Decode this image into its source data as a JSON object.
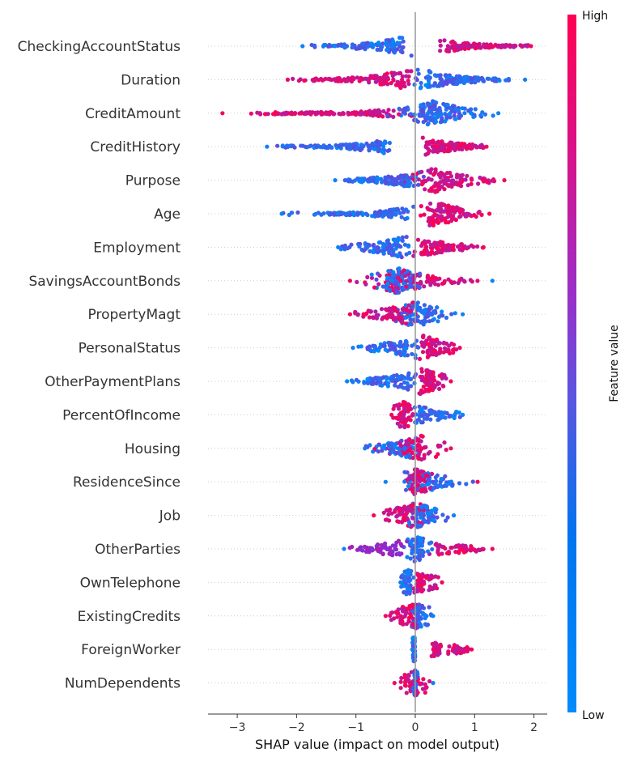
{
  "chart_data": {
    "type": "scatter",
    "subtype": "shap-beeswarm",
    "title": "",
    "xlabel": "SHAP value (impact on model output)",
    "ylabel": "",
    "xlim": [
      -3.5,
      2.2
    ],
    "xticks": [
      -3,
      -2,
      -1,
      0,
      1,
      2
    ],
    "xtick_labels": [
      "−3",
      "−2",
      "−1",
      "0",
      "1",
      "2"
    ],
    "zero_line": true,
    "colorbar": {
      "title": "Feature value",
      "high_label": "High",
      "low_label": "Low",
      "high_color": "#ff0052",
      "mid_color": "#8a2bd1",
      "low_color": "#008bfb"
    },
    "features": [
      {
        "name": "CheckingAccountStatus",
        "min": -1.9,
        "max": 1.95,
        "low_range": [
          -1.9,
          0.0
        ],
        "high_range": [
          0.6,
          1.95
        ],
        "center": 0.0
      },
      {
        "name": "Duration",
        "min": -2.15,
        "max": 1.85,
        "low_range": [
          -0.2,
          1.85
        ],
        "high_range": [
          -2.15,
          0.1
        ],
        "center": 0.0
      },
      {
        "name": "CreditAmount",
        "min": -3.25,
        "max": 1.4,
        "low_range": [
          -0.6,
          1.4
        ],
        "high_range": [
          -3.25,
          -0.3
        ],
        "center": 0.3
      },
      {
        "name": "CreditHistory",
        "min": -2.5,
        "max": 1.2,
        "low_range": [
          -2.5,
          -0.5
        ],
        "high_range": [
          0.2,
          1.2
        ],
        "center": -0.1
      },
      {
        "name": "Purpose",
        "min": -1.35,
        "max": 1.5,
        "low_range": [
          -1.35,
          0.0
        ],
        "high_range": [
          -0.3,
          1.5
        ],
        "center": 0.3
      },
      {
        "name": "Age",
        "min": -2.25,
        "max": 1.25,
        "low_range": [
          -2.25,
          0.0
        ],
        "high_range": [
          0.0,
          1.25
        ],
        "center": 0.3
      },
      {
        "name": "Employment",
        "min": -1.3,
        "max": 1.15,
        "low_range": [
          -1.3,
          0.0
        ],
        "high_range": [
          0.0,
          1.15
        ],
        "center": -0.1
      },
      {
        "name": "SavingsAccountBonds",
        "min": -1.1,
        "max": 1.3,
        "low_range": [
          -0.8,
          0.3
        ],
        "high_range": [
          -1.1,
          1.3
        ],
        "center": -0.3
      },
      {
        "name": "PropertyMagt",
        "min": -1.1,
        "max": 0.8,
        "low_range": [
          -0.5,
          0.8
        ],
        "high_range": [
          -1.1,
          0.2
        ],
        "center": 0.0
      },
      {
        "name": "PersonalStatus",
        "min": -1.05,
        "max": 0.75,
        "low_range": [
          -1.05,
          0.1
        ],
        "high_range": [
          0.0,
          0.75
        ],
        "center": 0.1
      },
      {
        "name": "OtherPaymentPlans",
        "min": -1.15,
        "max": 0.6,
        "low_range": [
          -1.15,
          0.0
        ],
        "high_range": [
          0.0,
          0.6
        ],
        "center": 0.1
      },
      {
        "name": "PercentOfIncome",
        "min": -0.4,
        "max": 0.8,
        "low_range": [
          0.0,
          0.8
        ],
        "high_range": [
          -0.4,
          0.0
        ],
        "center": -0.2
      },
      {
        "name": "Housing",
        "min": -0.85,
        "max": 0.6,
        "low_range": [
          -0.85,
          0.0
        ],
        "high_range": [
          -0.7,
          0.6
        ],
        "center": 0.1
      },
      {
        "name": "ResidenceSince",
        "min": -0.5,
        "max": 1.05,
        "low_range": [
          -0.5,
          1.05
        ],
        "high_range": [
          -0.2,
          0.3
        ],
        "center": 0.0
      },
      {
        "name": "Job",
        "min": -0.7,
        "max": 0.65,
        "low_range": [
          -0.3,
          0.65
        ],
        "high_range": [
          -0.7,
          0.3
        ],
        "center": 0.0
      },
      {
        "name": "OtherParties",
        "min": -1.2,
        "max": 1.3,
        "low_range": [
          -0.2,
          0.3
        ],
        "high_range": [
          0.4,
          1.3
        ],
        "mixed_range": [
          -1.2,
          -0.2
        ],
        "center": 0.0
      },
      {
        "name": "OwnTelephone",
        "min": -0.25,
        "max": 0.45,
        "low_range": [
          -0.25,
          0.0
        ],
        "high_range": [
          0.0,
          0.45
        ],
        "center": -0.1
      },
      {
        "name": "ExistingCredits",
        "min": -0.5,
        "max": 0.3,
        "low_range": [
          -0.1,
          0.3
        ],
        "high_range": [
          -0.5,
          0.1
        ],
        "center": 0.0
      },
      {
        "name": "ForeignWorker",
        "min": -0.05,
        "max": 0.95,
        "low_range": [
          -0.05,
          0.0
        ],
        "high_range": [
          0.5,
          0.95
        ],
        "center": 0.0
      },
      {
        "name": "NumDependents",
        "min": -0.35,
        "max": 0.3,
        "low_range": [
          -0.05,
          0.05
        ],
        "high_range": [
          -0.35,
          0.3
        ],
        "center": 0.0
      }
    ]
  }
}
